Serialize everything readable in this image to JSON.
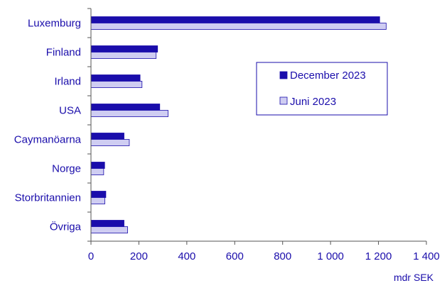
{
  "chart_data": {
    "type": "bar",
    "orientation": "horizontal",
    "categories": [
      "Luxemburg",
      "Finland",
      "Irland",
      "USA",
      "Caymanöarna",
      "Norge",
      "Storbritannien",
      "Övriga"
    ],
    "series": [
      {
        "name": "December 2023",
        "values": [
          1205,
          278,
          205,
          287,
          138,
          57,
          62,
          138
        ],
        "color": "#1a0dab"
      },
      {
        "name": "Juni 2023",
        "values": [
          1232,
          272,
          213,
          322,
          160,
          53,
          58,
          153
        ],
        "color": "#cfcdf2"
      }
    ],
    "x_ticks": [
      "0",
      "200",
      "400",
      "600",
      "800",
      "1 000",
      "1 200",
      "1 400"
    ],
    "xlim": [
      0,
      1400
    ],
    "xlabel": "mdr SEK",
    "title": "",
    "grid": false,
    "legend_position": "top-right",
    "text_color": "#1a0dab",
    "axis_color": "#555555"
  }
}
